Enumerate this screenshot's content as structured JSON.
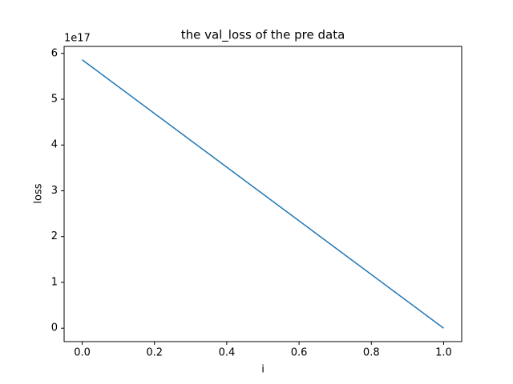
{
  "chart_data": {
    "type": "line",
    "title": "the val_loss of the pre data",
    "xlabel": "i",
    "ylabel": "loss",
    "y_offset_label": "1e17",
    "x": [
      0,
      1
    ],
    "series": [
      {
        "name": "val_loss",
        "color": "#1f77b4",
        "values": [
          5.86,
          0
        ]
      }
    ],
    "xlim": [
      -0.05,
      1.05
    ],
    "xticks": [
      {
        "value": 0,
        "label": "0.0"
      },
      0.2,
      0.4,
      0.6,
      0.8,
      {
        "value": 1,
        "label": "1.0"
      }
    ],
    "ylim": [
      -0.293,
      6.153
    ],
    "yticks": [
      0,
      1,
      2,
      3,
      4,
      5,
      6
    ],
    "grid": false,
    "legend": false
  }
}
